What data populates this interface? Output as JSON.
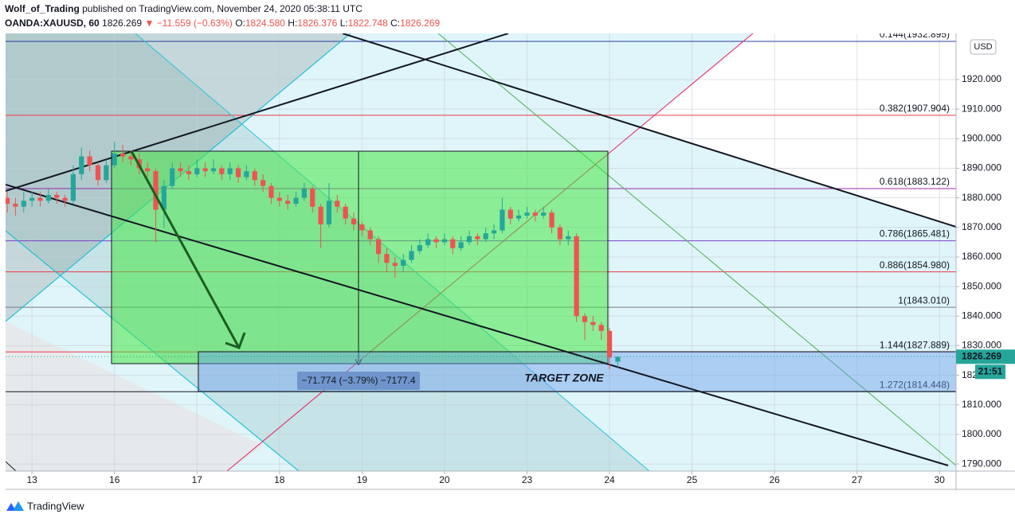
{
  "header": {
    "author": "Wolf_of_Trading",
    "published": "published on TradingView.com, November 24, 2020 05:38:11 UTC"
  },
  "legend": {
    "symbol": "OANDA:XAUUSD, 60",
    "last": "1826.269",
    "arrow": "▼",
    "change": "−11.559 (−0.63%)",
    "open_label": "O:",
    "open": "1824.580",
    "high_label": "H:",
    "high": "1826.376",
    "low_label": "L:",
    "low": "1822.748",
    "close_label": "C:",
    "close": "1826.269"
  },
  "footer": {
    "brand": "TradingView"
  },
  "chart_data": {
    "type": "candlestick",
    "xlim": [
      -0.32,
      11.2
    ],
    "ylim": [
      1787.6,
      1935.6
    ],
    "xticks": [
      {
        "value": 0,
        "label": "13"
      },
      {
        "value": 1,
        "label": "16"
      },
      {
        "value": 2,
        "label": "17"
      },
      {
        "value": 3,
        "label": "18"
      },
      {
        "value": 4,
        "label": "19"
      },
      {
        "value": 5,
        "label": "20"
      },
      {
        "value": 6,
        "label": "23"
      },
      {
        "value": 7,
        "label": "24"
      },
      {
        "value": 8,
        "label": "25"
      },
      {
        "value": 9,
        "label": "26"
      },
      {
        "value": 10,
        "label": "27"
      },
      {
        "value": 11,
        "label": "30"
      }
    ],
    "yticks": [
      {
        "value": 1790,
        "label": "1790.000"
      },
      {
        "value": 1800,
        "label": "1800.000"
      },
      {
        "value": 1810,
        "label": "1810.000"
      },
      {
        "value": 1820,
        "label": "1820.000"
      },
      {
        "value": 1830,
        "label": "1830.000"
      },
      {
        "value": 1840,
        "label": "1840.000"
      },
      {
        "value": 1850,
        "label": "1850.000"
      },
      {
        "value": 1860,
        "label": "1860.000"
      },
      {
        "value": 1870,
        "label": "1870.000"
      },
      {
        "value": 1880,
        "label": "1880.000"
      },
      {
        "value": 1890,
        "label": "1890.000"
      },
      {
        "value": 1900,
        "label": "1900.000"
      },
      {
        "value": 1910,
        "label": "1910.000"
      },
      {
        "value": 1920,
        "label": "1920.000"
      }
    ],
    "grid": true,
    "up_color": "#26a69a",
    "down_color": "#ef5350",
    "x": [
      -0.3,
      -0.2,
      -0.1,
      0,
      0.1,
      0.2,
      0.3,
      0.4,
      0.5,
      0.6,
      0.7,
      0.8,
      0.9,
      1,
      1.1,
      1.2,
      1.3,
      1.4,
      1.5,
      1.6,
      1.7,
      1.8,
      1.9,
      2,
      2.1,
      2.2,
      2.3,
      2.4,
      2.5,
      2.6,
      2.7,
      2.8,
      2.9,
      3,
      3.1,
      3.2,
      3.3,
      3.4,
      3.5,
      3.6,
      3.7,
      3.8,
      3.9,
      4,
      4.1,
      4.2,
      4.3,
      4.4,
      4.5,
      4.6,
      4.7,
      4.8,
      4.9,
      5,
      5.1,
      5.2,
      5.3,
      5.4,
      5.5,
      5.6,
      5.7,
      5.8,
      5.9,
      6,
      6.1,
      6.2,
      6.3,
      6.4,
      6.5,
      6.6,
      6.7,
      6.8,
      6.9,
      7,
      7.1
    ],
    "open": [
      1880,
      1878,
      1877,
      1879,
      1880,
      1879,
      1881,
      1880,
      1879,
      1888,
      1894,
      1891,
      1886,
      1891,
      1895,
      1894,
      1893,
      1890,
      1889,
      1876,
      1884,
      1890,
      1889,
      1888,
      1890,
      1889,
      1890,
      1888,
      1890,
      1887,
      1889,
      1886,
      1884,
      1880,
      1879,
      1878,
      1880,
      1883,
      1877,
      1871,
      1879,
      1877,
      1873,
      1871,
      1869,
      1866,
      1861,
      1858,
      1857,
      1859,
      1862,
      1864,
      1866,
      1865,
      1866,
      1863,
      1865,
      1867,
      1866,
      1868,
      1869,
      1876,
      1873,
      1874,
      1875,
      1874,
      1875,
      1870,
      1866,
      1867,
      1840,
      1838,
      1837,
      1835,
      1824.58
    ],
    "high": [
      1882,
      1880,
      1882,
      1882,
      1882,
      1883,
      1882,
      1881,
      1891,
      1897,
      1896,
      1892,
      1893,
      1899,
      1898,
      1896,
      1895,
      1892,
      1890,
      1886,
      1892,
      1892,
      1891,
      1893,
      1892,
      1893,
      1891,
      1892,
      1891,
      1891,
      1890,
      1888,
      1885,
      1882,
      1881,
      1882,
      1885,
      1884,
      1878,
      1885,
      1881,
      1878,
      1875,
      1872,
      1870,
      1867,
      1863,
      1860,
      1861,
      1864,
      1866,
      1868,
      1867,
      1868,
      1867,
      1867,
      1869,
      1868,
      1870,
      1871,
      1880,
      1877,
      1876,
      1877,
      1876,
      1877,
      1876,
      1871,
      1869,
      1868,
      1841,
      1840,
      1838,
      1836,
      1826.376
    ],
    "low": [
      1875,
      1874,
      1875,
      1877,
      1877,
      1878,
      1878,
      1877,
      1878,
      1886,
      1889,
      1884,
      1885,
      1890,
      1892,
      1891,
      1888,
      1887,
      1865,
      1870,
      1883,
      1887,
      1886,
      1887,
      1887,
      1888,
      1886,
      1886,
      1885,
      1886,
      1884,
      1882,
      1878,
      1877,
      1876,
      1877,
      1879,
      1875,
      1863,
      1870,
      1875,
      1871,
      1869,
      1867,
      1864,
      1858,
      1855,
      1853,
      1855,
      1858,
      1861,
      1863,
      1863,
      1864,
      1861,
      1862,
      1864,
      1864,
      1865,
      1866,
      1868,
      1871,
      1872,
      1873,
      1872,
      1873,
      1868,
      1864,
      1864,
      1838,
      1832,
      1835,
      1832,
      1822,
      1822.748
    ],
    "close": [
      1878,
      1877,
      1879,
      1880,
      1879,
      1881,
      1880,
      1879,
      1888,
      1894,
      1891,
      1886,
      1891,
      1895,
      1894,
      1893,
      1890,
      1889,
      1876,
      1884,
      1890,
      1889,
      1888,
      1890,
      1889,
      1890,
      1888,
      1890,
      1887,
      1889,
      1886,
      1884,
      1880,
      1879,
      1878,
      1880,
      1883,
      1877,
      1871,
      1879,
      1877,
      1873,
      1871,
      1869,
      1866,
      1861,
      1858,
      1857,
      1859,
      1862,
      1864,
      1866,
      1865,
      1866,
      1863,
      1865,
      1867,
      1866,
      1868,
      1869,
      1876,
      1873,
      1874,
      1875,
      1874,
      1875,
      1870,
      1866,
      1867,
      1840,
      1838,
      1837,
      1835,
      1826,
      1826.269
    ],
    "fib_levels": [
      {
        "value": 1932.895,
        "label": "0.144(1932.895)",
        "color": "#2a3f9d"
      },
      {
        "value": 1907.904,
        "label": "0.382(1907.904)",
        "color": "#f23645"
      },
      {
        "value": 1883.122,
        "label": "0.618(1883.122)",
        "color": "#9c27b0"
      },
      {
        "value": 1865.481,
        "label": "0.786(1865.481)",
        "color": "#7e3fc7"
      },
      {
        "value": 1854.98,
        "label": "0.886(1854.980)",
        "color": "#f23645"
      },
      {
        "value": 1843.01,
        "label": "1(1843.010)",
        "color": "#787b86"
      },
      {
        "value": 1827.889,
        "label": "1.144(1827.889)",
        "color": "#f23645"
      },
      {
        "value": 1814.448,
        "label": "1.272(1814.448)",
        "color": "#131722"
      }
    ],
    "current_price": {
      "value": 1826.269,
      "label": "1826.269",
      "color": "#26a69a"
    },
    "countdown": "21:51",
    "currency": "USD",
    "measure_label": "−71.774 (−3.79%) −7177.4",
    "annotation": "TARGET ZONE"
  }
}
